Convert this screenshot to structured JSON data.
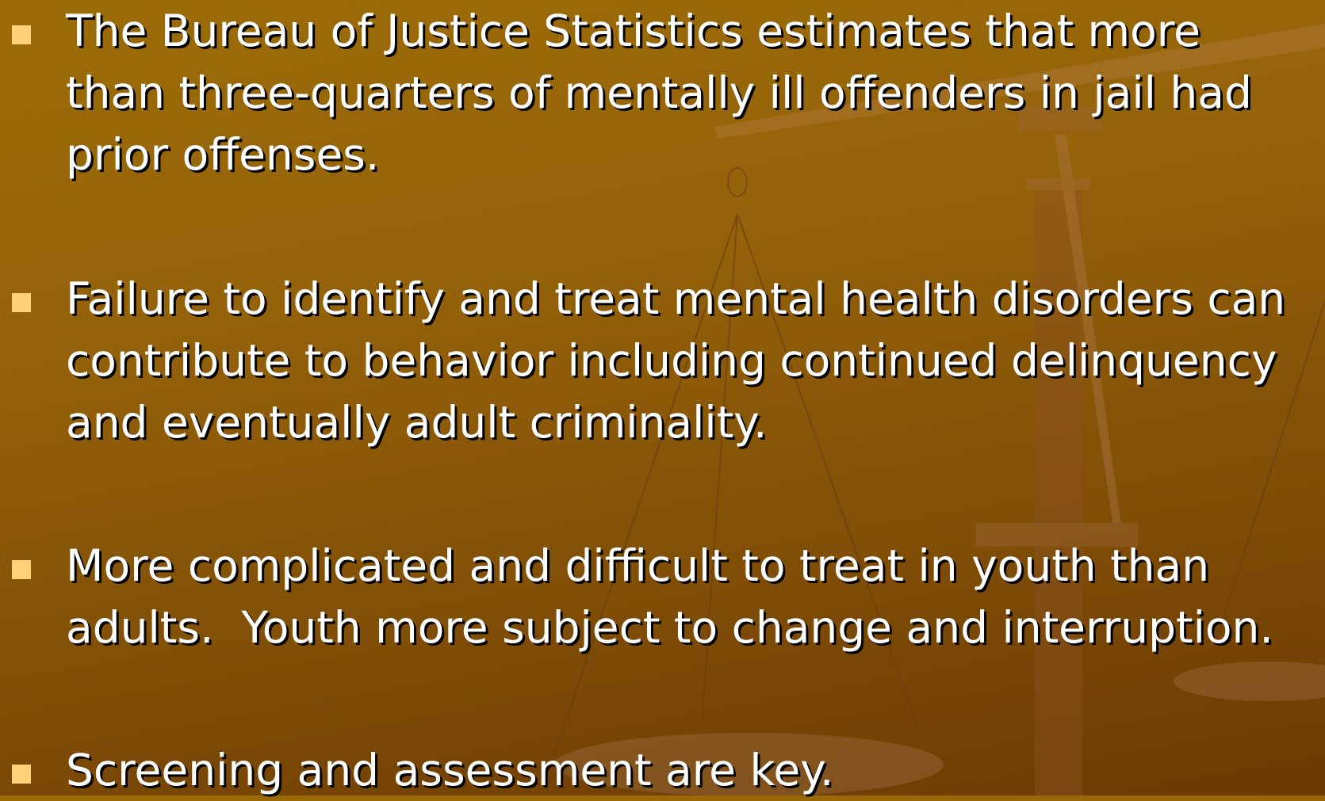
{
  "bullets": [
    {
      "lines": [
        "The Bureau of Justice Statistics estimates that more",
        "than three-quarters of mentally ill offenders in jail had",
        "prior offenses."
      ]
    },
    {
      "lines": [
        "Failure to identify and treat mental health disorders can",
        "contribute to behavior including continued delinquency",
        "and eventually adult criminality."
      ]
    },
    {
      "lines": [
        "More complicated and difficult to treat in youth than",
        "adults.  Youth more subject to change and interruption."
      ]
    },
    {
      "lines": [
        "Screening and assessment are key."
      ]
    }
  ]
}
